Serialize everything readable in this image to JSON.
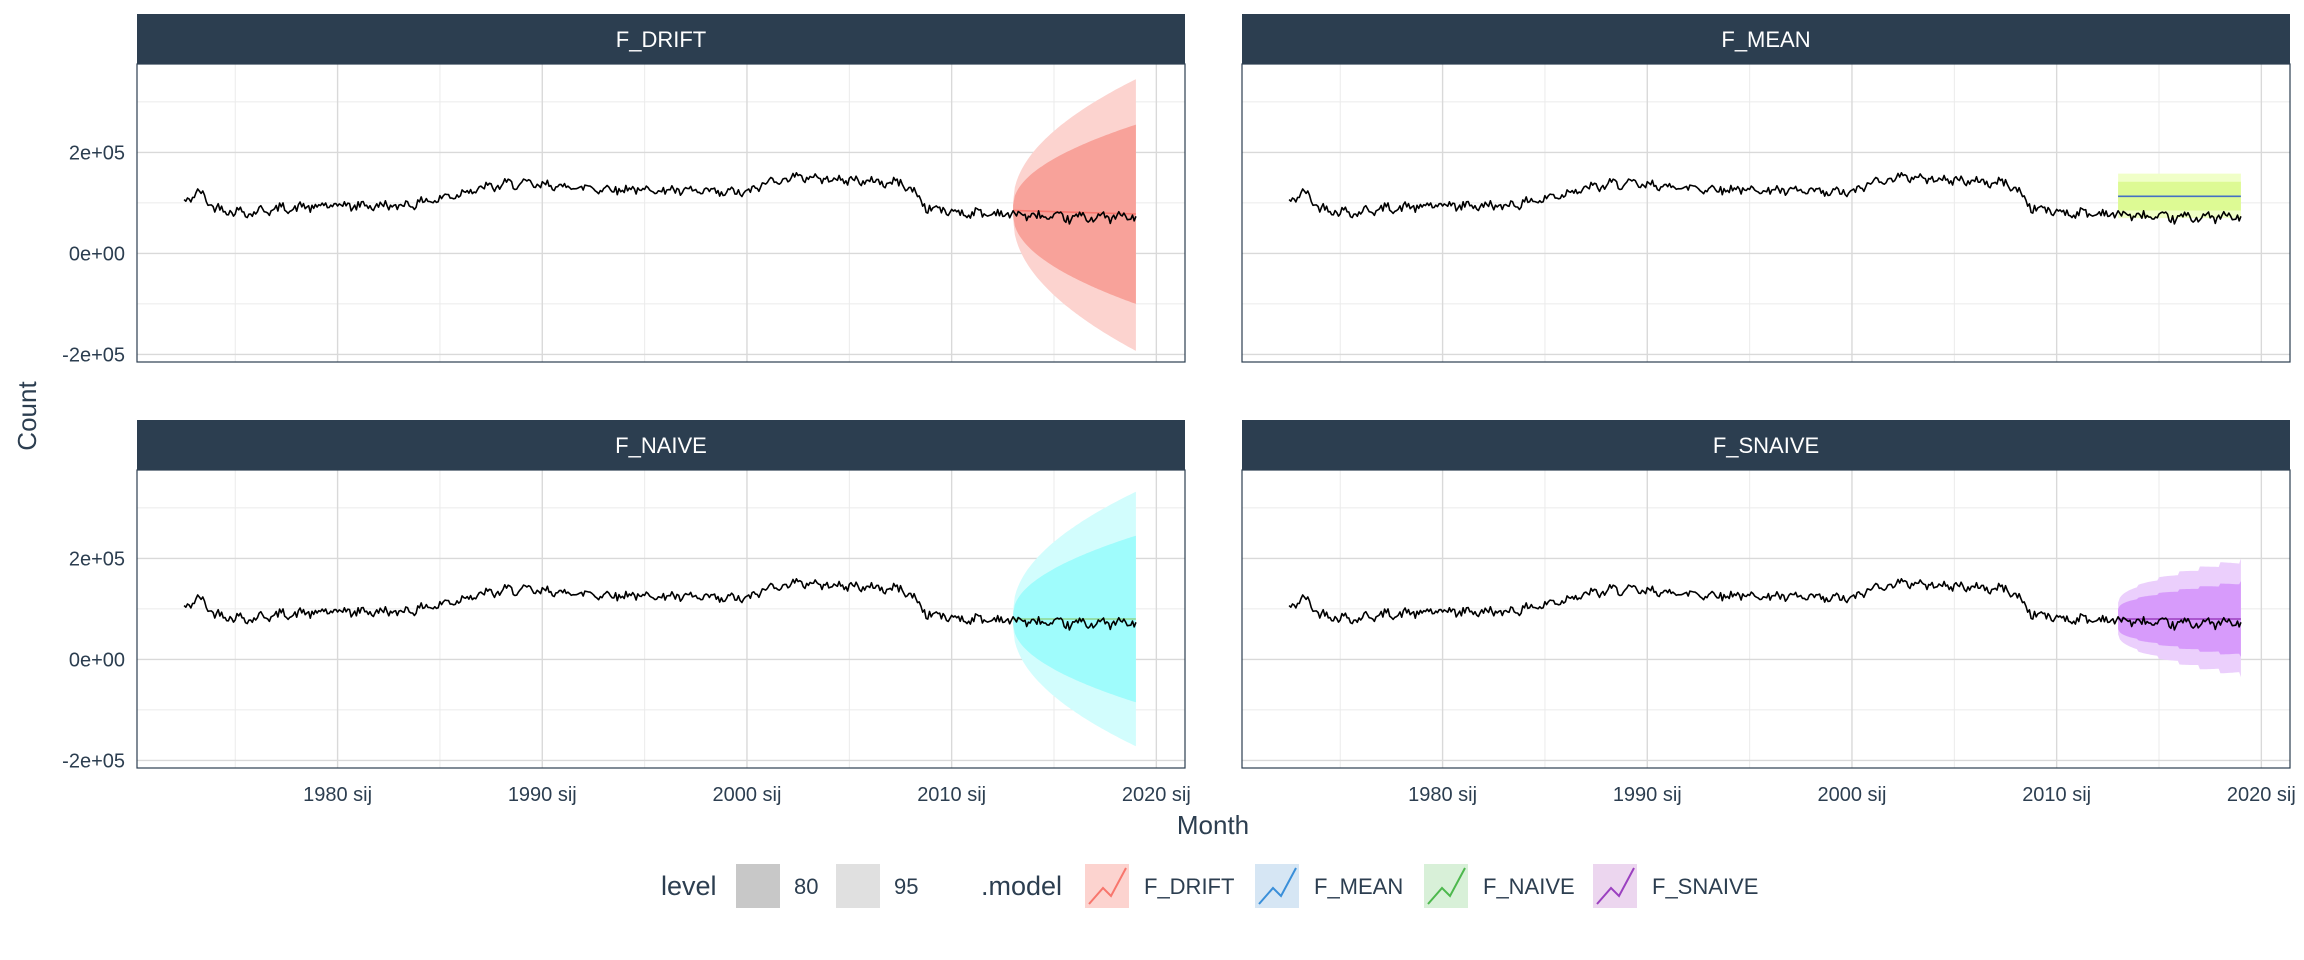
{
  "chart_data": {
    "type": "line",
    "xlabel": "Month",
    "ylabel": "Count",
    "x_ticks": [
      {
        "x": 1980,
        "label": "1980 sij"
      },
      {
        "x": 1990,
        "label": "1990 sij"
      },
      {
        "x": 2000,
        "label": "2000 sij"
      },
      {
        "x": 2010,
        "label": "2010 sij"
      },
      {
        "x": 2020,
        "label": "2020 sij"
      }
    ],
    "y_ticks": [
      {
        "y": 200000,
        "label": "2e+05"
      },
      {
        "y": 0,
        "label": "0e+00"
      },
      {
        "y": -200000,
        "label": "-2e+05"
      }
    ],
    "xlim": [
      1970.2,
      2021.4
    ],
    "ylim": [
      -215000,
      375000
    ],
    "grid": true,
    "legend_position": "bottom",
    "history": {
      "start": 1972.5,
      "end": 2019.0,
      "knots": [
        [
          1972.5,
          105000
        ],
        [
          1973.3,
          120000
        ],
        [
          1974.0,
          90000
        ],
        [
          1975.5,
          80000
        ],
        [
          1977.0,
          88000
        ],
        [
          1980.0,
          95000
        ],
        [
          1983.0,
          94000
        ],
        [
          1985.0,
          108000
        ],
        [
          1986.5,
          125000
        ],
        [
          1988.5,
          138000
        ],
        [
          1990.0,
          135000
        ],
        [
          1993.0,
          128000
        ],
        [
          1996.0,
          125000
        ],
        [
          1999.0,
          120000
        ],
        [
          2000.3,
          122000
        ],
        [
          2000.8,
          140000
        ],
        [
          2002.5,
          152000
        ],
        [
          2005.0,
          145000
        ],
        [
          2007.7,
          138000
        ],
        [
          2008.3,
          115000
        ],
        [
          2008.8,
          90000
        ],
        [
          2010.5,
          80000
        ],
        [
          2013.0,
          78000
        ],
        [
          2015.0,
          70000
        ],
        [
          2017.0,
          72000
        ],
        [
          2019.0,
          72000
        ]
      ],
      "amplitude": 8000
    },
    "panels": [
      {
        "model": "F_DRIFT",
        "forecast": {
          "start": 2013.0,
          "end": 2019.0,
          "mean_start": 85000,
          "mean_end": 78000,
          "pi80_start": [
            75000,
            95000
          ],
          "pi80_end": [
            -100000,
            255000
          ],
          "pi95_start": [
            68000,
            102000
          ],
          "pi95_end": [
            -193000,
            345000
          ],
          "shape": "sqrt"
        }
      },
      {
        "model": "F_MEAN",
        "forecast": {
          "start": 2013.0,
          "end": 2019.0,
          "mean_start": 113000,
          "mean_end": 113000,
          "pi80_start": [
            85000,
            142000
          ],
          "pi80_end": [
            85000,
            142000
          ],
          "pi95_start": [
            70000,
            158000
          ],
          "pi95_end": [
            70000,
            158000
          ],
          "shape": "flat"
        }
      },
      {
        "model": "F_NAIVE",
        "forecast": {
          "start": 2013.0,
          "end": 2019.0,
          "mean_start": 80000,
          "mean_end": 80000,
          "pi80_start": [
            70000,
            90000
          ],
          "pi80_end": [
            -85000,
            245000
          ],
          "pi95_start": [
            63000,
            97000
          ],
          "pi95_end": [
            -172000,
            332000
          ],
          "shape": "sqrt"
        }
      },
      {
        "model": "F_SNAIVE",
        "forecast": {
          "start": 2013.0,
          "end": 2019.0,
          "mean_start": 80000,
          "mean_end": 80000,
          "pi80_start": [
            60000,
            100000
          ],
          "pi80_end": [
            5000,
            155000
          ],
          "pi95_start": [
            50000,
            112000
          ],
          "pi95_end": [
            -35000,
            200000
          ],
          "shape": "sqrt_seasonal"
        }
      }
    ],
    "legend": {
      "level_title": "level",
      "levels": [
        {
          "label": "80",
          "color": "#c8c8c8"
        },
        {
          "label": "95",
          "color": "#e0e0e0"
        }
      ],
      "model_title": ".model",
      "models": [
        {
          "label": "F_DRIFT",
          "line": "#f8766d",
          "pi80": "#f8a29a",
          "pi95": "#fcd3cf",
          "bg": "#fcd3cf",
          "mean": "#f8766d"
        },
        {
          "label": "F_MEAN",
          "line": "#3a8fd9",
          "pi80": "#ddfa94",
          "pi95": "#f0ffc8",
          "bg": "#d6e6f4",
          "mean": "#4470c4"
        },
        {
          "label": "F_NAIVE",
          "line": "#4db84d",
          "pi80": "#9ffcfc",
          "pi95": "#d2fdfd",
          "bg": "#d8f0d8",
          "mean": "#8fd68f"
        },
        {
          "label": "F_SNAIVE",
          "line": "#9b40c0",
          "pi80": "#d79bfb",
          "pi95": "#ebcffc",
          "bg": "#ecd6ef",
          "mean": "#9b40c0"
        }
      ]
    }
  }
}
